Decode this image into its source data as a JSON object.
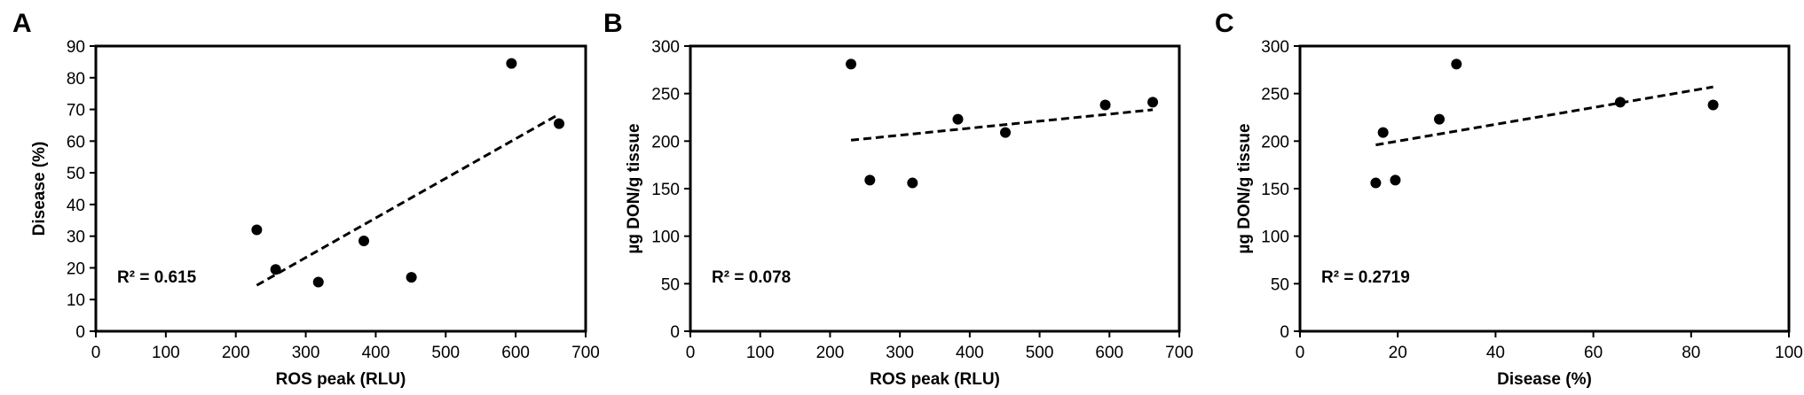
{
  "chart_data": [
    {
      "panel": "A",
      "type": "scatter",
      "xlabel": "ROS peak (RLU)",
      "ylabel": "Disease (%)",
      "xlim": [
        0,
        700
      ],
      "ylim": [
        0,
        90
      ],
      "x_ticks": [
        "0",
        "100",
        "200",
        "300",
        "400",
        "500",
        "600",
        "700"
      ],
      "y_ticks": [
        "0",
        "10",
        "20",
        "30",
        "40",
        "50",
        "60",
        "70",
        "80",
        "90"
      ],
      "points": [
        {
          "x": 230,
          "y": 32
        },
        {
          "x": 257,
          "y": 19.5
        },
        {
          "x": 318,
          "y": 15.5
        },
        {
          "x": 383,
          "y": 28.5
        },
        {
          "x": 451,
          "y": 17
        },
        {
          "x": 594,
          "y": 84.5
        },
        {
          "x": 662,
          "y": 65.5
        }
      ],
      "trendline": {
        "x": [
          230,
          662
        ],
        "y": [
          14.5,
          68.5
        ],
        "style": "dashed"
      },
      "annotation": "R² = 0.615"
    },
    {
      "panel": "B",
      "type": "scatter",
      "xlabel": "ROS peak (RLU)",
      "ylabel": "µg DON/g tissue",
      "xlim": [
        0,
        700
      ],
      "ylim": [
        0,
        300
      ],
      "x_ticks": [
        "0",
        "100",
        "200",
        "300",
        "400",
        "500",
        "600",
        "700"
      ],
      "y_ticks": [
        "0",
        "50",
        "100",
        "150",
        "200",
        "250",
        "300"
      ],
      "points": [
        {
          "x": 230,
          "y": 281
        },
        {
          "x": 257,
          "y": 159
        },
        {
          "x": 318,
          "y": 156
        },
        {
          "x": 383,
          "y": 223
        },
        {
          "x": 451,
          "y": 209
        },
        {
          "x": 594,
          "y": 238
        },
        {
          "x": 662,
          "y": 241
        }
      ],
      "trendline": {
        "x": [
          230,
          662
        ],
        "y": [
          201,
          233
        ],
        "style": "dashed"
      },
      "annotation": "R² = 0.078"
    },
    {
      "panel": "C",
      "type": "scatter",
      "xlabel": "Disease (%)",
      "ylabel": "µg DON/g tissue",
      "xlim": [
        0,
        100
      ],
      "ylim": [
        0,
        300
      ],
      "x_ticks": [
        "0",
        "20",
        "40",
        "60",
        "80",
        "100"
      ],
      "y_ticks": [
        "0",
        "50",
        "100",
        "150",
        "200",
        "250",
        "300"
      ],
      "points": [
        {
          "x": 15.5,
          "y": 156
        },
        {
          "x": 17,
          "y": 209
        },
        {
          "x": 19.5,
          "y": 159
        },
        {
          "x": 28.5,
          "y": 223
        },
        {
          "x": 32,
          "y": 281
        },
        {
          "x": 65.5,
          "y": 241
        },
        {
          "x": 84.5,
          "y": 238
        }
      ],
      "trendline": {
        "x": [
          15.5,
          84.5
        ],
        "y": [
          196,
          257
        ],
        "style": "dashed"
      },
      "annotation": "R² = 0.2719"
    }
  ]
}
